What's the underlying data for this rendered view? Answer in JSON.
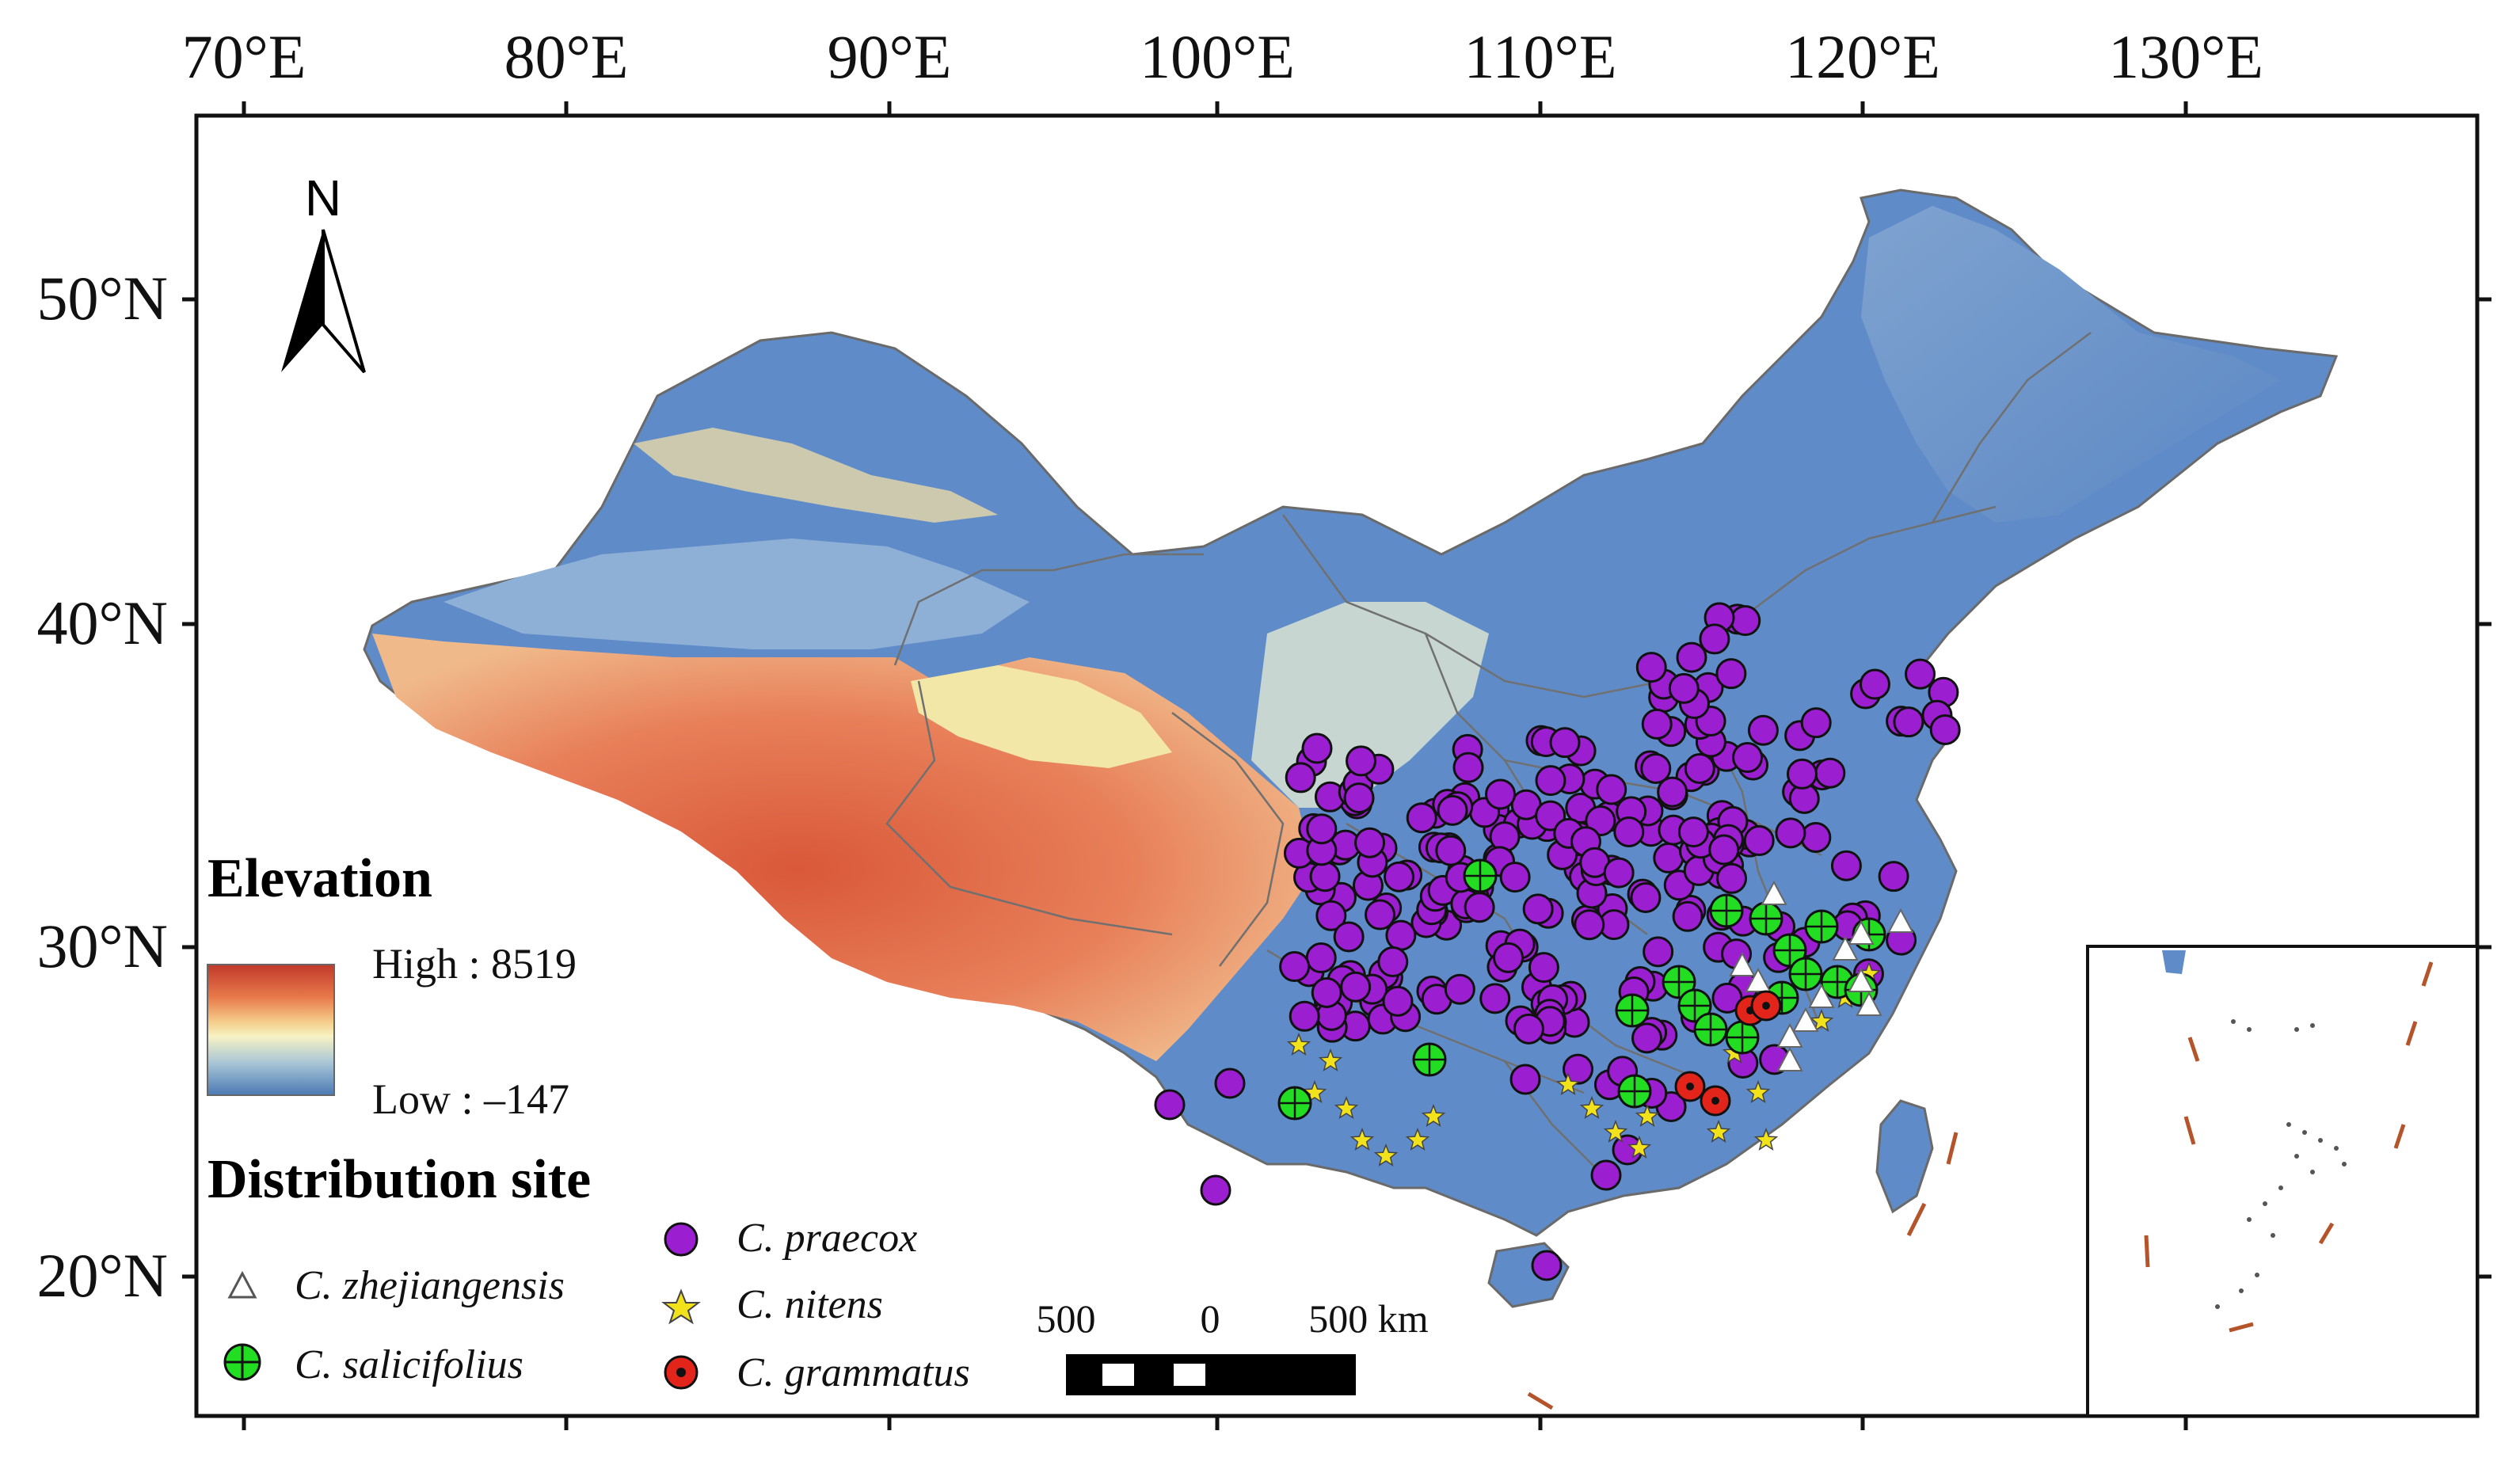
{
  "map": {
    "axes": {
      "longitude_labels": [
        "70°E",
        "80°E",
        "90°E",
        "100°E",
        "110°E",
        "120°E",
        "130°E"
      ],
      "latitude_labels": [
        "50°N",
        "40°N",
        "30°N",
        "20°N"
      ]
    },
    "north_arrow": {
      "label": "N"
    },
    "legend": {
      "elevation_title": "Elevation",
      "high_label": "High : 8519",
      "low_label": "Low : –147",
      "ramp_colors": [
        "#c0392b",
        "#e8794a",
        "#f6d28f",
        "#f7f2c4",
        "#a9c6d6",
        "#4a79b4"
      ],
      "distribution_title": "Distribution site",
      "species": [
        {
          "name": "C. zhejiangensis",
          "symbol": "triangle",
          "color": "#ffffff"
        },
        {
          "name": "C. salicifolius",
          "symbol": "circle-cross",
          "color": "#22dd22"
        },
        {
          "name": "C. praecox",
          "symbol": "circle",
          "color": "#9b1fd1"
        },
        {
          "name": "C. nitens",
          "symbol": "star",
          "color": "#f2e21c"
        },
        {
          "name": "C. grammatus",
          "symbol": "circle-dot",
          "color": "#e3241a"
        }
      ]
    },
    "scale_bar": {
      "labels": [
        "500",
        "0",
        "500 km"
      ]
    },
    "colors": {
      "lowland": "#5f8cc8",
      "plateau_high": "#d9583a",
      "frame": "#111111",
      "dash_line": "#b5542a"
    }
  }
}
